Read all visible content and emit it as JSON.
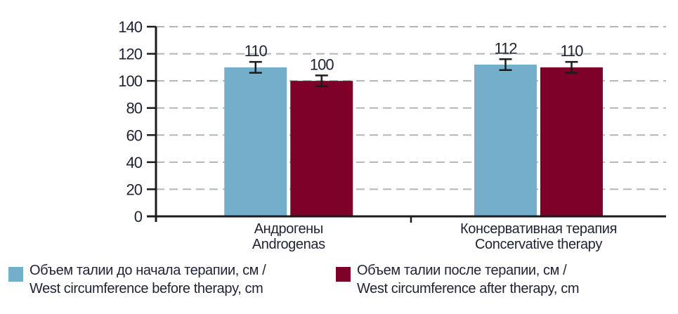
{
  "chart_data": {
    "type": "bar",
    "title": "",
    "xlabel": "",
    "ylabel": "",
    "ylim": [
      0,
      140
    ],
    "yticks": [
      0,
      20,
      40,
      60,
      80,
      100,
      120,
      140
    ],
    "grid": "horizontal-dashed",
    "legend_position": "bottom",
    "categories": [
      {
        "ru": "Андрогены",
        "en": "Androgenas"
      },
      {
        "ru": "Консервативная терапия",
        "en": "Concervative therapy"
      }
    ],
    "series": [
      {
        "name": "Объем талии до начала терапии, см / West circumference before therapy, cm",
        "color": "#73AFCB",
        "values": [
          110,
          112
        ],
        "errors": [
          4,
          4
        ]
      },
      {
        "name": "Объем талии после терапии, см / West circumference after therapy, cm",
        "color": "#7E0129",
        "values": [
          100,
          110
        ],
        "errors": [
          4,
          4
        ]
      }
    ]
  },
  "legend": {
    "items": [
      {
        "line1": "Объем талии до начала терапии, см /",
        "line2": "West circumference before therapy, cm"
      },
      {
        "line1": "Объем талии после терапии, см /",
        "line2": "West circumference after therapy, cm"
      }
    ]
  },
  "colors": {
    "axis": "#1c1c1c",
    "grid": "#b5b5b5",
    "text": "#1f2233",
    "error_bar": "#1c1c1c"
  }
}
